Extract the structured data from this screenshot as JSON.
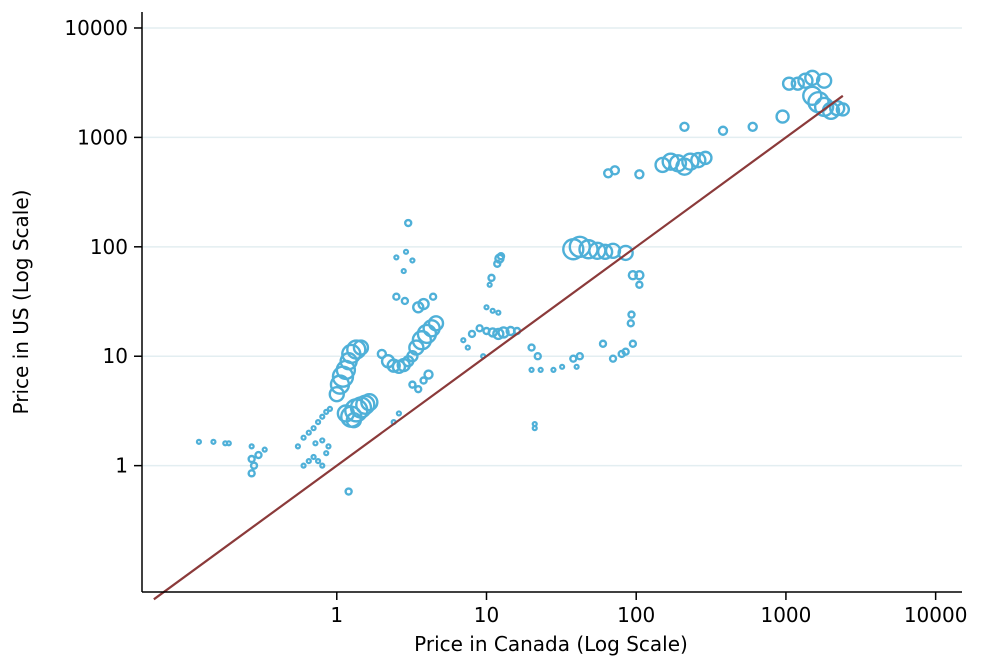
{
  "chart_data": {
    "type": "scatter",
    "xlabel": "Price in Canada (Log Scale)",
    "ylabel": "Price in US (Log Scale)",
    "x_scale": "log",
    "y_scale": "log",
    "xlim": [
      0.05,
      15000
    ],
    "ylim": [
      0.07,
      14000
    ],
    "x_ticks": [
      1,
      10,
      100,
      1000,
      10000
    ],
    "x_tick_labels": [
      "1",
      "10",
      "100",
      "1000",
      "10000"
    ],
    "y_ticks": [
      1,
      10,
      100,
      1000,
      10000
    ],
    "y_tick_labels": [
      "1",
      "10",
      "100",
      "1000",
      "10000"
    ],
    "grid": "horizontal",
    "colors": {
      "points": "#4fb0d8",
      "reference_line": "#8b3a3a",
      "grid": "#e3eef1"
    },
    "reference_line": {
      "x": [
        0.06,
        2400
      ],
      "y": [
        0.06,
        2400
      ]
    },
    "series": [
      {
        "marker": "hollow-circle",
        "points": [
          {
            "x": 0.12,
            "y": 1.65,
            "s": 2
          },
          {
            "x": 0.15,
            "y": 1.65,
            "s": 2
          },
          {
            "x": 0.18,
            "y": 1.6,
            "s": 2
          },
          {
            "x": 0.19,
            "y": 1.6,
            "s": 2
          },
          {
            "x": 0.27,
            "y": 1.5,
            "s": 2
          },
          {
            "x": 0.27,
            "y": 1.15,
            "s": 3
          },
          {
            "x": 0.28,
            "y": 1.0,
            "s": 3
          },
          {
            "x": 0.27,
            "y": 0.85,
            "s": 3
          },
          {
            "x": 0.3,
            "y": 1.25,
            "s": 3
          },
          {
            "x": 0.33,
            "y": 1.4,
            "s": 2
          },
          {
            "x": 0.55,
            "y": 1.5,
            "s": 2
          },
          {
            "x": 0.6,
            "y": 1.8,
            "s": 2
          },
          {
            "x": 0.65,
            "y": 2.0,
            "s": 2
          },
          {
            "x": 0.7,
            "y": 2.2,
            "s": 2
          },
          {
            "x": 0.75,
            "y": 2.5,
            "s": 2
          },
          {
            "x": 0.8,
            "y": 2.8,
            "s": 2
          },
          {
            "x": 0.85,
            "y": 3.1,
            "s": 2
          },
          {
            "x": 0.9,
            "y": 3.3,
            "s": 2
          },
          {
            "x": 0.6,
            "y": 1.0,
            "s": 2
          },
          {
            "x": 0.65,
            "y": 1.1,
            "s": 2
          },
          {
            "x": 0.7,
            "y": 1.2,
            "s": 2
          },
          {
            "x": 0.75,
            "y": 1.1,
            "s": 2
          },
          {
            "x": 0.8,
            "y": 1.0,
            "s": 2
          },
          {
            "x": 0.85,
            "y": 1.3,
            "s": 2
          },
          {
            "x": 0.88,
            "y": 1.5,
            "s": 2
          },
          {
            "x": 0.72,
            "y": 1.6,
            "s": 2
          },
          {
            "x": 0.8,
            "y": 1.7,
            "s": 2
          },
          {
            "x": 1.0,
            "y": 4.5,
            "s": 7
          },
          {
            "x": 1.05,
            "y": 5.5,
            "s": 9
          },
          {
            "x": 1.1,
            "y": 6.5,
            "s": 10
          },
          {
            "x": 1.15,
            "y": 7.5,
            "s": 9
          },
          {
            "x": 1.2,
            "y": 9.0,
            "s": 8
          },
          {
            "x": 1.25,
            "y": 10.5,
            "s": 9
          },
          {
            "x": 1.35,
            "y": 11.5,
            "s": 9
          },
          {
            "x": 1.45,
            "y": 12.0,
            "s": 7
          },
          {
            "x": 1.15,
            "y": 3.0,
            "s": 8
          },
          {
            "x": 1.25,
            "y": 2.8,
            "s": 10
          },
          {
            "x": 1.35,
            "y": 3.2,
            "s": 11
          },
          {
            "x": 1.45,
            "y": 3.4,
            "s": 10
          },
          {
            "x": 1.55,
            "y": 3.6,
            "s": 9
          },
          {
            "x": 1.65,
            "y": 3.8,
            "s": 8
          },
          {
            "x": 1.3,
            "y": 2.6,
            "s": 7
          },
          {
            "x": 1.2,
            "y": 0.58,
            "s": 3
          },
          {
            "x": 2.0,
            "y": 10.5,
            "s": 4
          },
          {
            "x": 2.2,
            "y": 9.0,
            "s": 6
          },
          {
            "x": 2.4,
            "y": 8.2,
            "s": 6
          },
          {
            "x": 2.6,
            "y": 8.0,
            "s": 6
          },
          {
            "x": 2.8,
            "y": 8.3,
            "s": 6
          },
          {
            "x": 3.0,
            "y": 9.0,
            "s": 5
          },
          {
            "x": 3.2,
            "y": 10.0,
            "s": 5
          },
          {
            "x": 3.4,
            "y": 12.0,
            "s": 7
          },
          {
            "x": 3.7,
            "y": 14.0,
            "s": 9
          },
          {
            "x": 4.0,
            "y": 16.0,
            "s": 9
          },
          {
            "x": 4.3,
            "y": 18.0,
            "s": 8
          },
          {
            "x": 4.6,
            "y": 20.0,
            "s": 7
          },
          {
            "x": 3.5,
            "y": 28.0,
            "s": 5
          },
          {
            "x": 3.8,
            "y": 30.0,
            "s": 5
          },
          {
            "x": 4.4,
            "y": 35.0,
            "s": 3
          },
          {
            "x": 3.2,
            "y": 5.5,
            "s": 3
          },
          {
            "x": 3.5,
            "y": 5.0,
            "s": 3
          },
          {
            "x": 3.8,
            "y": 6.0,
            "s": 3
          },
          {
            "x": 4.1,
            "y": 6.8,
            "s": 4
          },
          {
            "x": 2.4,
            "y": 2.5,
            "s": 2
          },
          {
            "x": 2.6,
            "y": 3.0,
            "s": 2
          },
          {
            "x": 2.5,
            "y": 80.0,
            "s": 2
          },
          {
            "x": 2.9,
            "y": 90.0,
            "s": 2
          },
          {
            "x": 3.2,
            "y": 75.0,
            "s": 2
          },
          {
            "x": 3.0,
            "y": 165.0,
            "s": 3
          },
          {
            "x": 2.8,
            "y": 60.0,
            "s": 2
          },
          {
            "x": 2.5,
            "y": 35.0,
            "s": 3
          },
          {
            "x": 2.85,
            "y": 32.0,
            "s": 3
          },
          {
            "x": 8.0,
            "y": 16.0,
            "s": 3
          },
          {
            "x": 9.0,
            "y": 18.0,
            "s": 3
          },
          {
            "x": 10.0,
            "y": 17.0,
            "s": 3
          },
          {
            "x": 11.0,
            "y": 16.5,
            "s": 4
          },
          {
            "x": 12.0,
            "y": 16.0,
            "s": 5
          },
          {
            "x": 13.0,
            "y": 16.5,
            "s": 5
          },
          {
            "x": 14.5,
            "y": 17.0,
            "s": 4
          },
          {
            "x": 16.0,
            "y": 17.0,
            "s": 3
          },
          {
            "x": 10.0,
            "y": 28.0,
            "s": 2
          },
          {
            "x": 11.0,
            "y": 26.0,
            "s": 2
          },
          {
            "x": 12.0,
            "y": 25.0,
            "s": 2
          },
          {
            "x": 10.5,
            "y": 45.0,
            "s": 2
          },
          {
            "x": 10.8,
            "y": 52.0,
            "s": 3
          },
          {
            "x": 11.8,
            "y": 70.0,
            "s": 3
          },
          {
            "x": 12.2,
            "y": 78.0,
            "s": 4
          },
          {
            "x": 12.5,
            "y": 82.0,
            "s": 3
          },
          {
            "x": 7.0,
            "y": 14.0,
            "s": 2
          },
          {
            "x": 7.5,
            "y": 12.0,
            "s": 2
          },
          {
            "x": 9.5,
            "y": 10.0,
            "s": 2
          },
          {
            "x": 20.0,
            "y": 12.0,
            "s": 3
          },
          {
            "x": 22.0,
            "y": 10.0,
            "s": 3
          },
          {
            "x": 20.0,
            "y": 7.5,
            "s": 2
          },
          {
            "x": 23.0,
            "y": 7.5,
            "s": 2
          },
          {
            "x": 28.0,
            "y": 7.5,
            "s": 2
          },
          {
            "x": 32.0,
            "y": 8.0,
            "s": 2
          },
          {
            "x": 38.0,
            "y": 9.5,
            "s": 3
          },
          {
            "x": 42.0,
            "y": 10.0,
            "s": 3
          },
          {
            "x": 40.0,
            "y": 8.0,
            "s": 2
          },
          {
            "x": 21.0,
            "y": 2.4,
            "s": 2
          },
          {
            "x": 21.0,
            "y": 2.2,
            "s": 2
          },
          {
            "x": 60.0,
            "y": 13.0,
            "s": 3
          },
          {
            "x": 70.0,
            "y": 9.5,
            "s": 3
          },
          {
            "x": 80.0,
            "y": 10.5,
            "s": 3
          },
          {
            "x": 85.0,
            "y": 11.0,
            "s": 3
          },
          {
            "x": 95.0,
            "y": 13.0,
            "s": 3
          },
          {
            "x": 92.0,
            "y": 20.0,
            "s": 3
          },
          {
            "x": 93.0,
            "y": 24.0,
            "s": 3
          },
          {
            "x": 95.0,
            "y": 55.0,
            "s": 4
          },
          {
            "x": 105.0,
            "y": 55.0,
            "s": 4
          },
          {
            "x": 105.0,
            "y": 45.0,
            "s": 3
          },
          {
            "x": 38.0,
            "y": 95.0,
            "s": 10
          },
          {
            "x": 42.0,
            "y": 100.0,
            "s": 10
          },
          {
            "x": 48.0,
            "y": 95.0,
            "s": 9
          },
          {
            "x": 55.0,
            "y": 92.0,
            "s": 8
          },
          {
            "x": 62.0,
            "y": 90.0,
            "s": 7
          },
          {
            "x": 70.0,
            "y": 92.0,
            "s": 7
          },
          {
            "x": 85.0,
            "y": 88.0,
            "s": 7
          },
          {
            "x": 65.0,
            "y": 470.0,
            "s": 4
          },
          {
            "x": 72.0,
            "y": 500.0,
            "s": 4
          },
          {
            "x": 105.0,
            "y": 460.0,
            "s": 4
          },
          {
            "x": 150.0,
            "y": 560.0,
            "s": 7
          },
          {
            "x": 170.0,
            "y": 600.0,
            "s": 8
          },
          {
            "x": 190.0,
            "y": 580.0,
            "s": 8
          },
          {
            "x": 210.0,
            "y": 540.0,
            "s": 8
          },
          {
            "x": 230.0,
            "y": 600.0,
            "s": 8
          },
          {
            "x": 260.0,
            "y": 620.0,
            "s": 7
          },
          {
            "x": 290.0,
            "y": 650.0,
            "s": 6
          },
          {
            "x": 210.0,
            "y": 1250.0,
            "s": 4
          },
          {
            "x": 380.0,
            "y": 1150.0,
            "s": 4
          },
          {
            "x": 600.0,
            "y": 1250.0,
            "s": 4
          },
          {
            "x": 950.0,
            "y": 1550.0,
            "s": 6
          },
          {
            "x": 1050.0,
            "y": 3100.0,
            "s": 6
          },
          {
            "x": 1200.0,
            "y": 3100.0,
            "s": 6
          },
          {
            "x": 1350.0,
            "y": 3300.0,
            "s": 7
          },
          {
            "x": 1500.0,
            "y": 3500.0,
            "s": 7
          },
          {
            "x": 1800.0,
            "y": 3300.0,
            "s": 7
          },
          {
            "x": 1500.0,
            "y": 2400.0,
            "s": 9
          },
          {
            "x": 1650.0,
            "y": 2100.0,
            "s": 10
          },
          {
            "x": 1800.0,
            "y": 1900.0,
            "s": 9
          },
          {
            "x": 2000.0,
            "y": 1750.0,
            "s": 8
          },
          {
            "x": 2200.0,
            "y": 1850.0,
            "s": 7
          },
          {
            "x": 2400.0,
            "y": 1800.0,
            "s": 6
          }
        ]
      }
    ]
  }
}
